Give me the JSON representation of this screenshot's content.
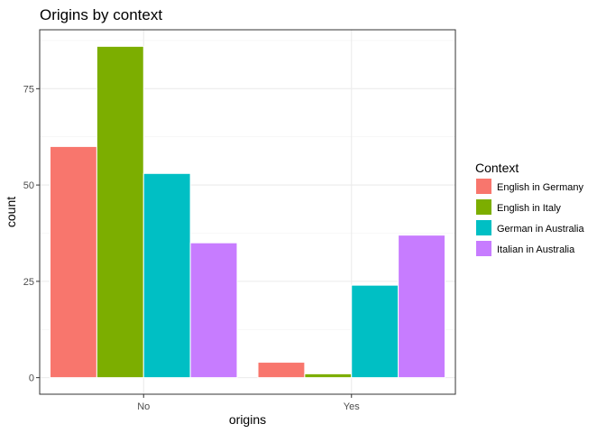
{
  "chart_data": {
    "type": "bar",
    "title": "Origins by context",
    "xlabel": "origins",
    "ylabel": "count",
    "categories": [
      "No",
      "Yes"
    ],
    "ylim": [
      -4.3,
      90.3
    ],
    "yticks": [
      0,
      25,
      50,
      75
    ],
    "grid": true,
    "legend": {
      "title": "Context",
      "position": "right",
      "entries": [
        "English in Germany",
        "English in Italy",
        "German in Australia",
        "Italian in Australia"
      ]
    },
    "series": [
      {
        "name": "English in Germany",
        "color": "#F8766D",
        "values": [
          60,
          4
        ]
      },
      {
        "name": "English in Italy",
        "color": "#7CAE00",
        "values": [
          86,
          1
        ]
      },
      {
        "name": "German in Australia",
        "color": "#00BFC4",
        "values": [
          53,
          24
        ]
      },
      {
        "name": "Italian in Australia",
        "color": "#C77CFF",
        "values": [
          35,
          37
        ]
      }
    ]
  }
}
